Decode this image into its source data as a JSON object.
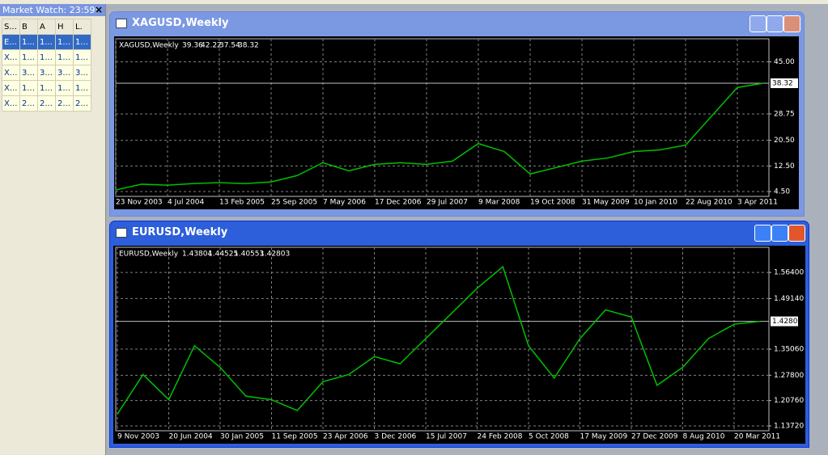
{
  "market_watch": {
    "title": "Market Watch: 23:59:",
    "close": "×",
    "columns": [
      "S...",
      "B",
      "A",
      "H",
      "L."
    ],
    "rows": [
      [
        "E...",
        "1...",
        "1...",
        "1...",
        "1..."
      ],
      [
        "X...",
        "1...",
        "1...",
        "1...",
        "1..."
      ],
      [
        "X...",
        "3...",
        "3...",
        "3...",
        "3..."
      ],
      [
        "X...",
        "1...",
        "1...",
        "1...",
        "1..."
      ],
      [
        "X...",
        "2...",
        "2...",
        "2...",
        "2..."
      ]
    ]
  },
  "chart_data": [
    {
      "type": "line",
      "title": "XAGUSD,Weekly",
      "ohlc": [
        39.36,
        42.22,
        37.54,
        38.32
      ],
      "categories": [
        "23 Nov 2003",
        null,
        "4 Jul 2004",
        null,
        "13 Feb 2005",
        null,
        "25 Sep 2005",
        null,
        "7 May 2006",
        null,
        "17 Dec 2006",
        null,
        "29 Jul 2007",
        null,
        "9 Mar 2008",
        null,
        "19 Oct 2008",
        null,
        "31 May 2009",
        null,
        "10 Jan 2010",
        null,
        "22 Aug 2010",
        null,
        "3 Apr 2011",
        null
      ],
      "values": [
        5.0,
        6.8,
        6.5,
        7.0,
        7.3,
        7.0,
        7.5,
        9.5,
        13.5,
        11.0,
        13.0,
        13.5,
        13.0,
        14.0,
        19.5,
        17.0,
        10.0,
        12.0,
        14.0,
        15.0,
        17.0,
        17.5,
        19.0,
        28.0,
        37.0,
        38.32
      ],
      "color": "#00c000",
      "ylim": [
        3.0,
        52.2
      ],
      "yticks": [
        {
          "value": 4.5,
          "label": "4.50"
        },
        {
          "value": 12.5,
          "label": "12.50"
        },
        {
          "value": 20.5,
          "label": "20.50"
        },
        {
          "value": 28.75,
          "label": "28.75"
        },
        {
          "value": 45,
          "label": "45.00"
        }
      ],
      "grid": true
    },
    {
      "type": "line",
      "title": "EURUSD,Weekly",
      "ohlc": [
        1.43804,
        1.44525,
        1.40553,
        1.42803
      ],
      "categories": [
        "9 Nov 2003",
        null,
        "20 Jun 2004",
        null,
        "30 Jan 2005",
        null,
        "11 Sep 2005",
        null,
        "23 Apr 2006",
        null,
        "3 Dec 2006",
        null,
        "15 Jul 2007",
        null,
        "24 Feb 2008",
        null,
        "5 Oct 2008",
        null,
        "17 May 2009",
        null,
        "27 Dec 2009",
        null,
        "8 Aug 2010",
        null,
        "20 Mar 2011",
        null
      ],
      "values": [
        1.17,
        1.28,
        1.21,
        1.36,
        1.3,
        1.22,
        1.21,
        1.18,
        1.26,
        1.28,
        1.33,
        1.31,
        1.38,
        1.45,
        1.52,
        1.58,
        1.36,
        1.27,
        1.38,
        1.46,
        1.44,
        1.25,
        1.3,
        1.38,
        1.42,
        1.42803
      ],
      "color": "#00c000",
      "ylim": [
        1.1236,
        1.634
      ],
      "yticks": [
        {
          "value": 1.1372,
          "label": "1.13720"
        },
        {
          "value": 1.2076,
          "label": "1.20760"
        },
        {
          "value": 1.278,
          "label": "1.27800"
        },
        {
          "value": 1.3506,
          "label": "1.35060"
        },
        {
          "value": 1.4914,
          "label": "1.49140"
        },
        {
          "value": 1.564,
          "label": "1.56400"
        }
      ],
      "grid": true
    }
  ]
}
